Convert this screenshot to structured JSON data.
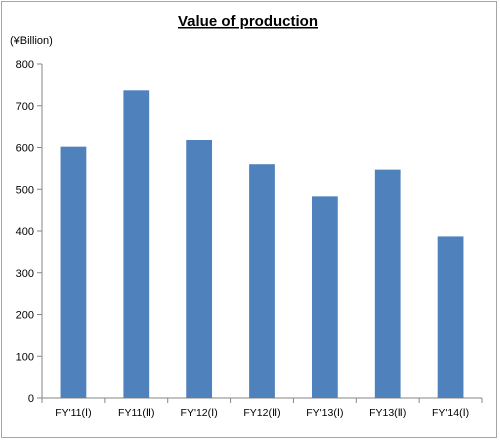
{
  "chart_data": {
    "type": "bar",
    "title": "Value of production",
    "unit_label": "(¥Billion)",
    "categories": [
      "FY'11(Ⅰ)",
      "FY11(Ⅱ)",
      "FY'12(Ⅰ)",
      "FY12(Ⅱ)",
      "FY'13(Ⅰ)",
      "FY13(Ⅱ)",
      "FY'14(Ⅰ)"
    ],
    "values": [
      602,
      737,
      618,
      560,
      483,
      547,
      387
    ],
    "ylim": [
      0,
      800
    ],
    "yticks": [
      0,
      100,
      200,
      300,
      400,
      500,
      600,
      700,
      800
    ],
    "grid": false,
    "legend": "none",
    "bar_color": "#4f81bd"
  }
}
